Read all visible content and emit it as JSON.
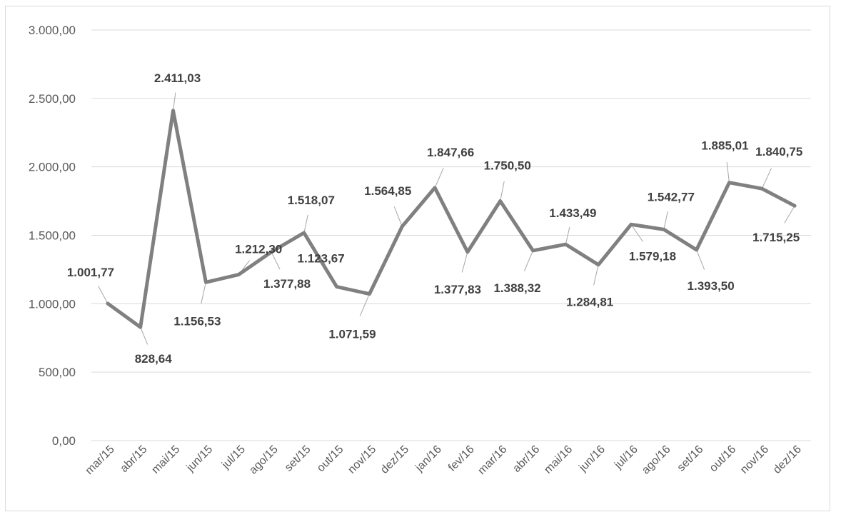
{
  "chart_data": {
    "type": "line",
    "title": "",
    "xlabel": "",
    "ylabel": "",
    "ylim": [
      0,
      3000
    ],
    "y_ticks": [
      "0,00",
      "500,00",
      "1.000,00",
      "1.500,00",
      "2.000,00",
      "2.500,00",
      "3.000,00"
    ],
    "grid": true,
    "legend": "none",
    "line_color": "#808080",
    "categories": [
      "mar/15",
      "abr/15",
      "mai/15",
      "jun/15",
      "jul/15",
      "ago/15",
      "set/15",
      "out/15",
      "nov/15",
      "dez/15",
      "jan/16",
      "fev/16",
      "mar/16",
      "abr/16",
      "mai/16",
      "jun/16",
      "jul/16",
      "ago/16",
      "set/16",
      "out/16",
      "nov/16",
      "dez/16"
    ],
    "series": [
      {
        "values": [
          1001.77,
          828.64,
          2411.03,
          1156.53,
          1212.3,
          1377.88,
          1518.07,
          1123.67,
          1071.59,
          1564.85,
          1847.66,
          1377.83,
          1750.5,
          1388.32,
          1433.49,
          1284.81,
          1579.18,
          1542.77,
          1393.5,
          1885.01,
          1840.75,
          1715.25
        ],
        "data_labels": [
          "1.001,77",
          "828,64",
          "2.411,03",
          "1.156,53",
          "1.212,30",
          "1.377,88",
          "1.518,07",
          "1.123,67",
          "1.071,59",
          "1.564,85",
          "1.847,66",
          "1.377,83",
          "1.750,50",
          "1.388,32",
          "1.433,49",
          "1.284,81",
          "1.579,18",
          "1.542,77",
          "1.393,50",
          "1.885,01",
          "1.840,75",
          "1.715,25"
        ]
      }
    ]
  }
}
